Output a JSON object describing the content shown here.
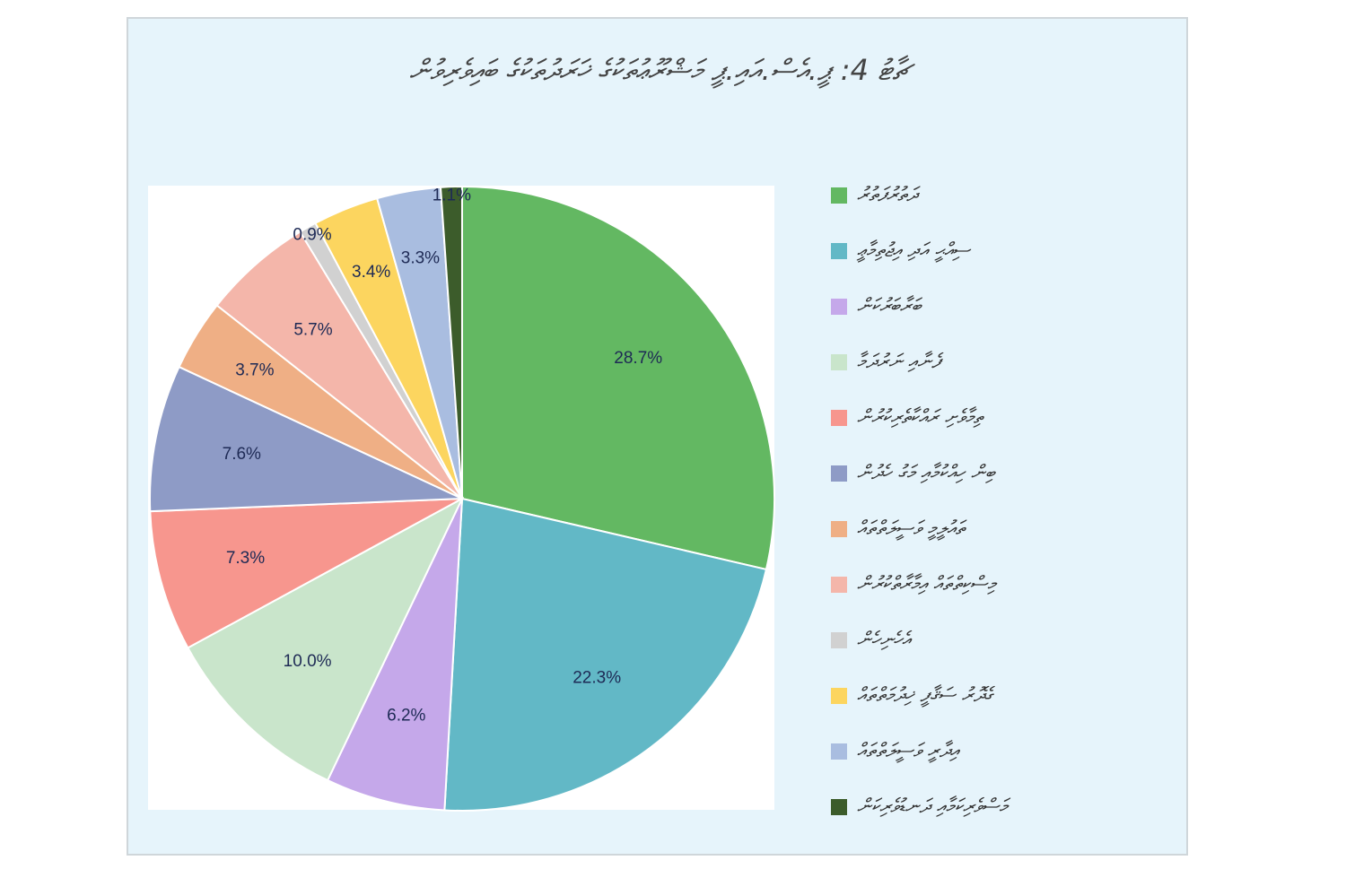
{
  "chart_data": {
    "type": "pie",
    "title": "ޗާޓު 4: ޕީ.އެސް.އައި.ޕީ މަޝްރޫޢުތަކުގެ ޚަރަދުތަކުގެ ބައިވެރިވުން",
    "categories": [
      "ދަތުރުފަތުރު",
      "ސިއްޙީ އަދި އިޖުތިމާޢީ",
      "ބަރާބަރުކަން",
      "ފެނާއި ނަރުދަމާ",
      "ތިމާވެށި ރައްކާތެރިކުރުން",
      "ބިން ހިއްކުމާއި މަގު ހެދުން",
      "ތައުލީމީ ވަސީލަތްތައް",
      "މިސްކިތްތައް އިމާރާތްކުރުން",
      "އެހެނިހެން",
      "ގެދޮރު ސަޤާފީ ޚިދުމަތްތައް",
      "އިދާރީ ވަސީލަތްތައް",
      "މަސްވެރިކަމާއި ދަނޑުވެރިކަން"
    ],
    "values": [
      28.7,
      22.3,
      6.2,
      10.0,
      7.3,
      7.6,
      3.7,
      5.7,
      0.9,
      3.4,
      3.3,
      1.1
    ],
    "value_labels": [
      "28.7%",
      "22.3%",
      "6.2%",
      "10.0%",
      "7.3%",
      "7.6%",
      "3.7%",
      "5.7%",
      "0.9%",
      "3.4%",
      "3.3%",
      "1.1%"
    ],
    "colors": [
      "#63b862",
      "#62b8c6",
      "#c5a8ea",
      "#c9e5cb",
      "#f7968e",
      "#8e9bc6",
      "#efaf85",
      "#f4b6aa",
      "#d1d1d1",
      "#fcd55f",
      "#a9bde0",
      "#3c5c2b"
    ],
    "legend": "right"
  }
}
